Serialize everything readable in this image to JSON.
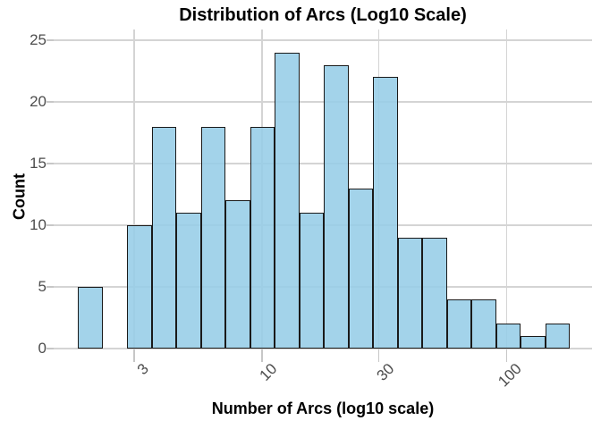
{
  "chart_data": {
    "type": "bar",
    "subtype": "histogram",
    "title": "Distribution of Arcs (Log10 Scale)",
    "xlabel": "Number of Arcs (log10 scale)",
    "ylabel": "Count",
    "x_scale": "log10",
    "grid": true,
    "legend": "none",
    "x_ticks": [
      3,
      10,
      30,
      100
    ],
    "y_ticks": [
      0,
      5,
      10,
      15,
      20,
      25
    ],
    "ylim": [
      0,
      26
    ],
    "xlim_approx": [
      1.4,
      230
    ],
    "bin_edges_log10": [
      0.248,
      0.349,
      0.449,
      0.55,
      0.65,
      0.751,
      0.851,
      0.952,
      1.052,
      1.153,
      1.253,
      1.354,
      1.454,
      1.555,
      1.655,
      1.756,
      1.856,
      1.957,
      2.057,
      2.158,
      2.258
    ],
    "bin_edges_x_approx": [
      1.8,
      2.2,
      2.8,
      3.5,
      4.5,
      5.6,
      7.1,
      9.0,
      11.3,
      14.2,
      17.9,
      22.6,
      28.5,
      35.9,
      45.2,
      57.0,
      71.8,
      90.6,
      114,
      144,
      181
    ],
    "counts": [
      5,
      0,
      10,
      18,
      11,
      18,
      12,
      18,
      24,
      11,
      23,
      13,
      22,
      9,
      9,
      4,
      4,
      2,
      1,
      2
    ],
    "total_n": 216,
    "colors": {
      "bar_fill": "#a3d3ea",
      "bar_border": "#1a1a1a",
      "grid_line": "#d4d4d4",
      "tick_mark": "#c7c7c7",
      "tick_label": "#4d4d4d",
      "title": "#000000"
    }
  }
}
